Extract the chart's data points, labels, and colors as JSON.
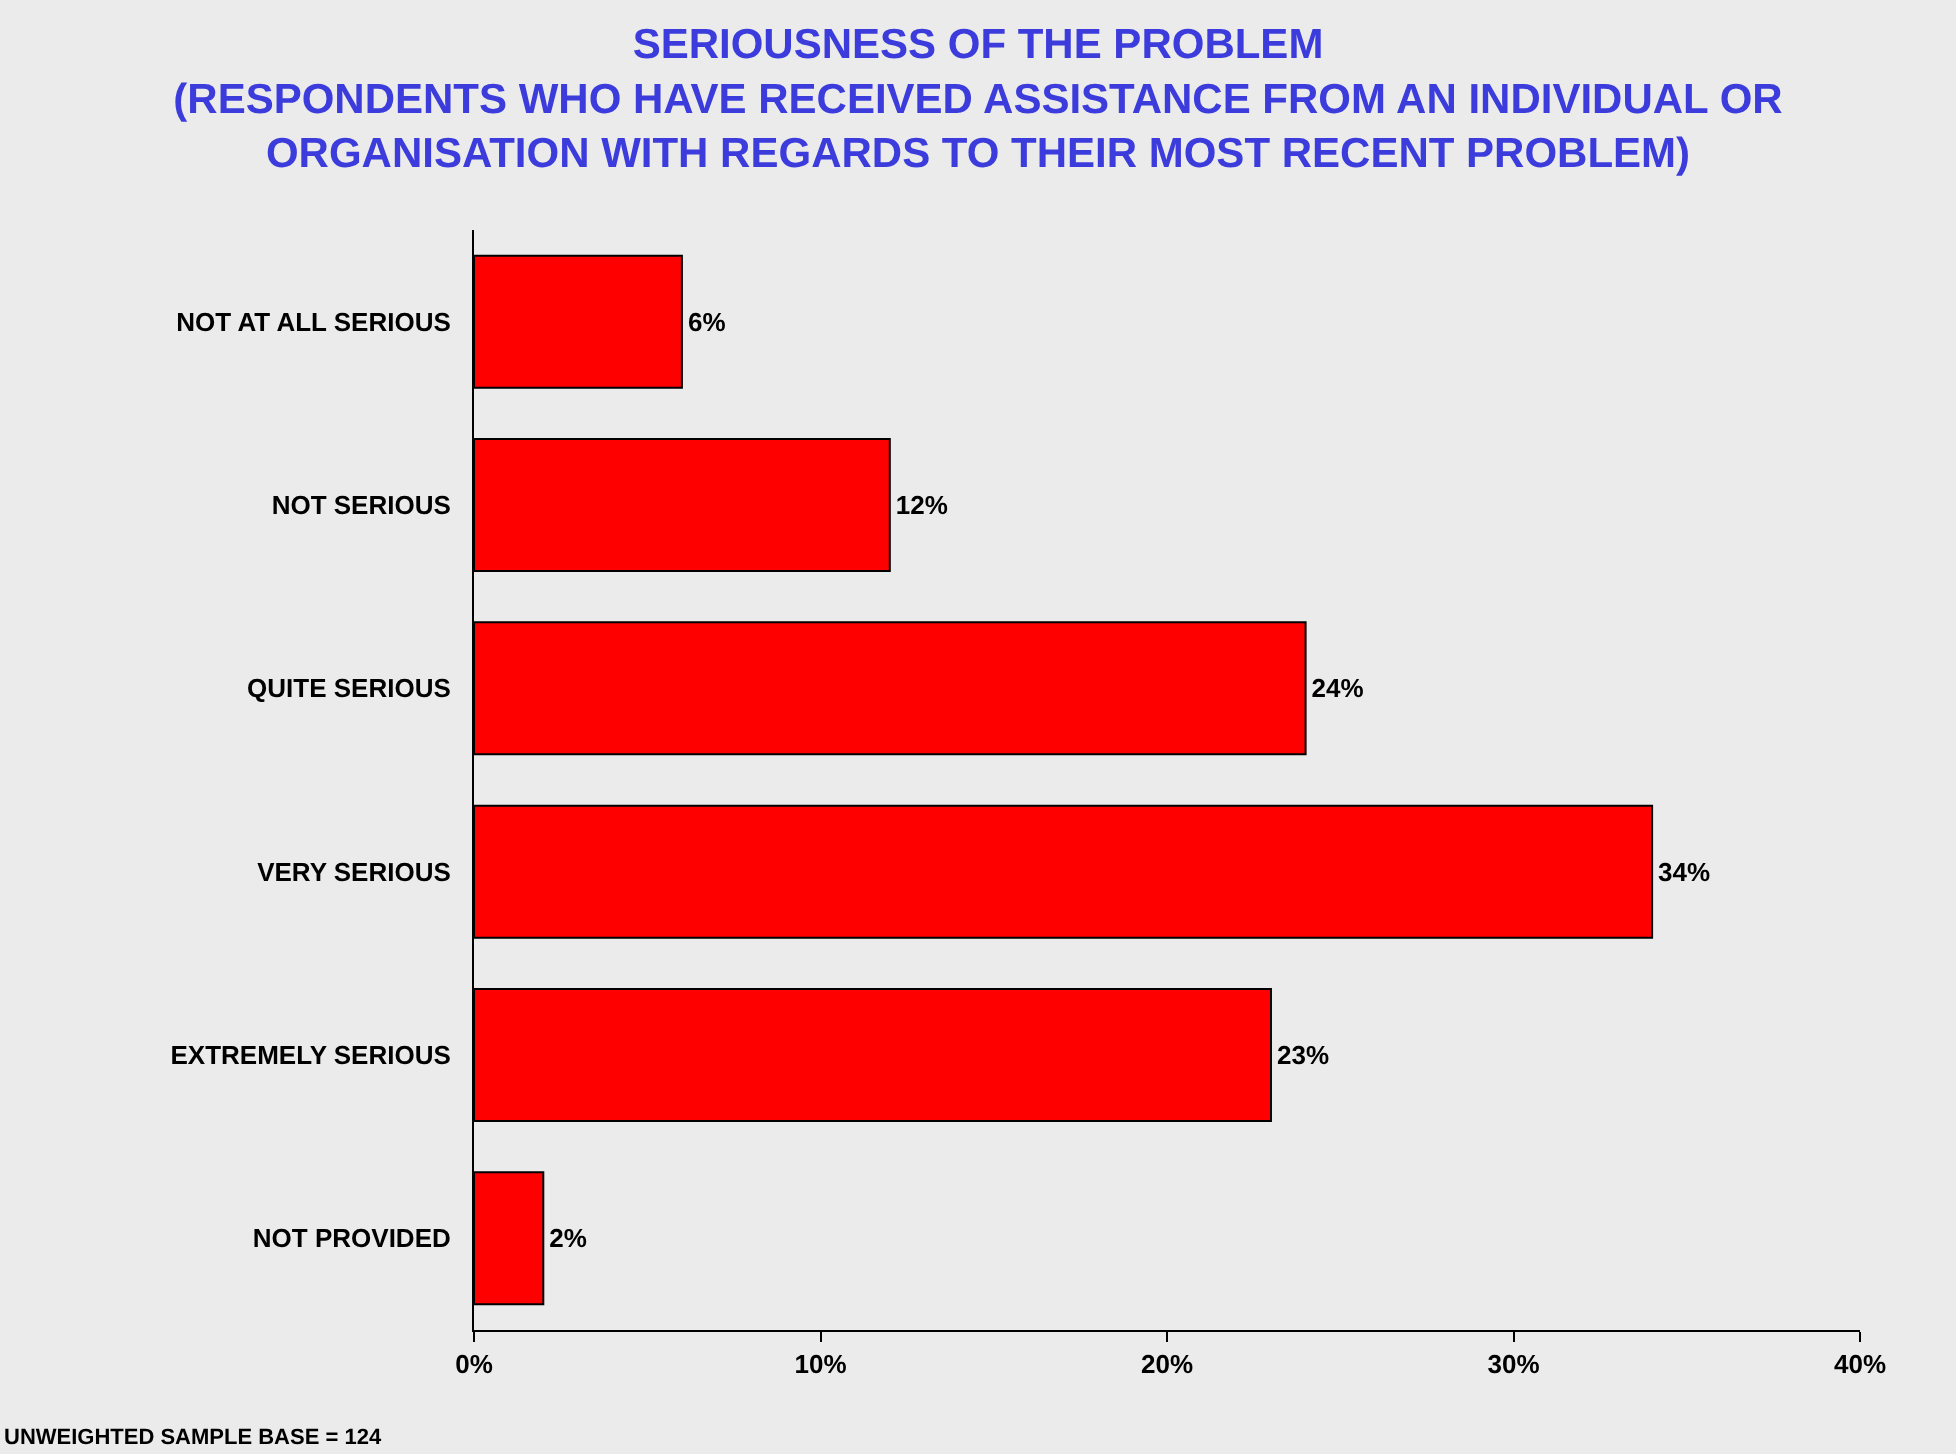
{
  "chart_data": {
    "type": "bar",
    "orientation": "horizontal",
    "title": "SERIOUSNESS OF THE PROBLEM",
    "subtitle": "(RESPONDENTS WHO HAVE RECEIVED ASSISTANCE FROM AN INDIVIDUAL OR ORGANISATION WITH REGARDS TO THEIR MOST RECENT PROBLEM)",
    "categories": [
      "NOT AT ALL SERIOUS",
      "NOT SERIOUS",
      "QUITE SERIOUS",
      "VERY SERIOUS",
      "EXTREMELY SERIOUS",
      "NOT PROVIDED"
    ],
    "values": [
      6,
      12,
      24,
      34,
      23,
      2
    ],
    "color": "#ff0000",
    "xlim": [
      0,
      40
    ],
    "xticks": [
      {
        "value": 0,
        "label": "0%"
      },
      {
        "value": 10,
        "label": "10%"
      },
      {
        "value": 20,
        "label": "20%"
      },
      {
        "value": 30,
        "label": "30%"
      },
      {
        "value": 40,
        "label": "40%"
      }
    ],
    "value_labels": [
      "6%",
      "12%",
      "24%",
      "34%",
      "23%",
      "2%"
    ],
    "annotations": [
      "UNWEIGHTED SAMPLE BASE = 124"
    ],
    "grid": false
  }
}
